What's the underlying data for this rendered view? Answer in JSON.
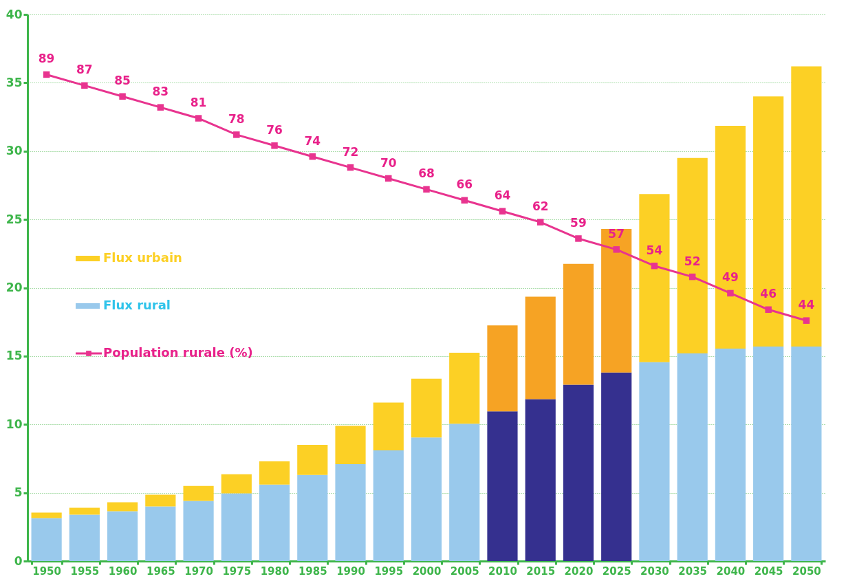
{
  "chart_data": {
    "type": "bar",
    "stacked": true,
    "categories": [
      "1950",
      "1955",
      "1960",
      "1965",
      "1970",
      "1975",
      "1980",
      "1985",
      "1990",
      "1995",
      "2000",
      "2005",
      "2010",
      "2015",
      "2020",
      "2025",
      "2030",
      "2035",
      "2040",
      "2045",
      "2050"
    ],
    "series": [
      {
        "name": "Flux rural",
        "color": "#99c9ec",
        "colors": [
          "#99c9ec",
          "#99c9ec",
          "#99c9ec",
          "#99c9ec",
          "#99c9ec",
          "#99c9ec",
          "#99c9ec",
          "#99c9ec",
          "#99c9ec",
          "#99c9ec",
          "#99c9ec",
          "#99c9ec",
          "#35308f",
          "#35308f",
          "#35308f",
          "#35308f",
          "#99c9ec",
          "#99c9ec",
          "#99c9ec",
          "#99c9ec",
          "#99c9ec"
        ],
        "values": [
          3.15,
          3.4,
          3.65,
          4.0,
          4.4,
          4.95,
          5.6,
          6.3,
          7.1,
          8.1,
          9.05,
          10.05,
          10.95,
          11.85,
          12.9,
          13.8,
          14.55,
          15.2,
          15.55,
          15.7,
          15.7
        ]
      },
      {
        "name": "Flux urbain",
        "color": "#fcd025",
        "colors": [
          "#fcd025",
          "#fcd025",
          "#fcd025",
          "#fcd025",
          "#fcd025",
          "#fcd025",
          "#fcd025",
          "#fcd025",
          "#fcd025",
          "#fcd025",
          "#fcd025",
          "#fcd025",
          "#f6a324",
          "#f6a324",
          "#f6a324",
          "#f6a324",
          "#fcd025",
          "#fcd025",
          "#fcd025",
          "#fcd025",
          "#fcd025"
        ],
        "values": [
          0.4,
          0.5,
          0.65,
          0.85,
          1.1,
          1.4,
          1.7,
          2.2,
          2.8,
          3.5,
          4.3,
          5.2,
          6.3,
          7.5,
          8.85,
          10.5,
          12.3,
          14.3,
          16.3,
          18.3,
          20.5
        ]
      },
      {
        "name": "Population rurale (%)",
        "type": "line",
        "axis": "y2",
        "color": "#e8348f",
        "marker": "square",
        "values": [
          89,
          87,
          85,
          83,
          81,
          78,
          76,
          74,
          72,
          70,
          68,
          66,
          64,
          62,
          59,
          57,
          54,
          52,
          49,
          46,
          44
        ],
        "value_labels": [
          "89",
          "87",
          "85",
          "83",
          "81",
          "78",
          "76",
          "74",
          "72",
          "70",
          "68",
          "66",
          "64",
          "62",
          "59",
          "57",
          "54",
          "52",
          "49",
          "46",
          "44"
        ]
      }
    ],
    "ylim": [
      0,
      40
    ],
    "yticks": [
      0,
      5,
      10,
      15,
      20,
      25,
      30,
      35,
      40
    ],
    "y2lim": [
      0,
      100
    ],
    "grid": "y",
    "legend": "left"
  }
}
